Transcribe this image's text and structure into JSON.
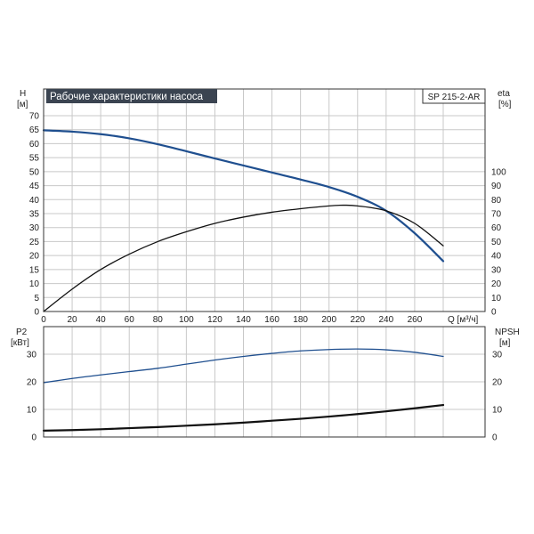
{
  "chart_data": [
    {
      "type": "line",
      "title": "Рабочие характеристики насоса",
      "model_label": "SP 215-2-AR",
      "left_axis_name": "H",
      "left_axis_unit": "[м]",
      "right_axis_name": "eta",
      "right_axis_unit": "[%]",
      "xlabel": "Q [м³/ч]",
      "xlim": [
        0,
        280
      ],
      "x_ticks": [
        "0",
        "20",
        "40",
        "60",
        "80",
        "100",
        "120",
        "140",
        "160",
        "180",
        "200",
        "220",
        "240",
        "260"
      ],
      "left_ylim": [
        0,
        70
      ],
      "left_ticks": [
        "0",
        "5",
        "10",
        "15",
        "20",
        "25",
        "30",
        "35",
        "40",
        "45",
        "50",
        "55",
        "60",
        "65",
        "70"
      ],
      "right_ticks": [
        "0",
        "10",
        "20",
        "30",
        "40",
        "50",
        "60",
        "70",
        "80",
        "90",
        "100"
      ],
      "right_scale": "0–100 % mapped onto 0–50 m of the left axis",
      "grid": true,
      "series": [
        {
          "axis": "left",
          "color": "#1f4f8f",
          "x": [
            0,
            20,
            40,
            60,
            80,
            100,
            120,
            140,
            160,
            180,
            200,
            220,
            240,
            260,
            280
          ],
          "y": [
            64.8,
            64.3,
            63.4,
            61.9,
            59.8,
            57.3,
            54.7,
            52.2,
            49.7,
            47.2,
            44.5,
            41.0,
            36.0,
            28.0,
            18.0
          ]
        },
        {
          "axis": "right",
          "color": "#111111",
          "x": [
            0,
            20,
            40,
            60,
            80,
            100,
            120,
            140,
            160,
            180,
            200,
            210,
            220,
            240,
            260,
            280
          ],
          "y": [
            0,
            16,
            30,
            41,
            50,
            57,
            63,
            67.5,
            71,
            73.5,
            75.5,
            76,
            75.5,
            72,
            63,
            47
          ]
        }
      ]
    },
    {
      "type": "line",
      "left_axis_name": "P2",
      "left_axis_unit": "[кВт]",
      "right_axis_name": "NPSH",
      "right_axis_unit": "[м]",
      "xlim": [
        0,
        280
      ],
      "left_ylim": [
        0,
        40
      ],
      "left_ticks": [
        "0",
        "10",
        "20",
        "30"
      ],
      "right_ticks": [
        "0",
        "10",
        "20",
        "30"
      ],
      "grid": true,
      "series": [
        {
          "axis": "left",
          "color": "#1f4f8f",
          "x": [
            0,
            20,
            40,
            60,
            80,
            100,
            120,
            140,
            160,
            180,
            200,
            220,
            240,
            260,
            280
          ],
          "y": [
            19.7,
            21.2,
            22.5,
            23.7,
            24.9,
            26.4,
            27.9,
            29.2,
            30.3,
            31.2,
            31.7,
            31.9,
            31.6,
            30.7,
            29.2
          ]
        },
        {
          "axis": "right",
          "color": "#111111",
          "x": [
            0,
            20,
            40,
            60,
            80,
            100,
            120,
            140,
            160,
            180,
            200,
            220,
            240,
            260,
            280
          ],
          "y": [
            2.3,
            2.5,
            2.8,
            3.2,
            3.6,
            4.1,
            4.6,
            5.2,
            5.9,
            6.6,
            7.4,
            8.3,
            9.3,
            10.4,
            11.6
          ]
        }
      ]
    }
  ]
}
